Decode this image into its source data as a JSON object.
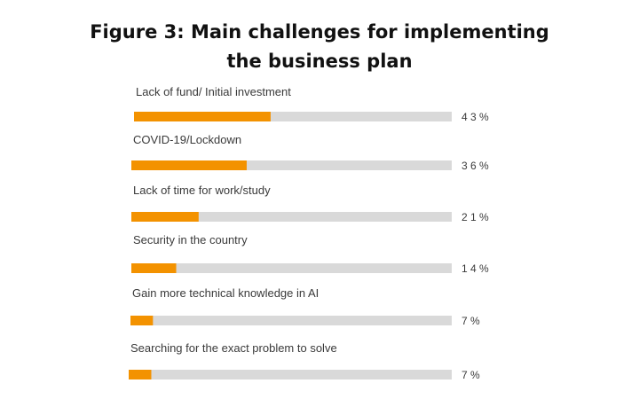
{
  "chart_data": {
    "type": "bar",
    "orientation": "horizontal",
    "title_lines": [
      "Figure 3: Main challenges for implementing",
      "the business plan"
    ],
    "categories": [
      "Lack of fund/ Initial investment",
      "COVID-19/Lockdown",
      "Lack of time for work/study",
      "Security in the country",
      "Gain more technical knowledge in AI",
      "Searching for the exact problem to solve"
    ],
    "values": [
      43,
      36,
      21,
      14,
      7,
      7
    ],
    "value_labels": [
      "4 3 %",
      "3 6 %",
      "2 1 %",
      "1 4 %",
      "7 %",
      "7 %"
    ],
    "xlim": [
      0,
      100
    ],
    "grid": false,
    "legend": "none",
    "bar_color": "#F39200",
    "track_color": "#D9D9D9",
    "label_color": "#3A3A3A"
  }
}
